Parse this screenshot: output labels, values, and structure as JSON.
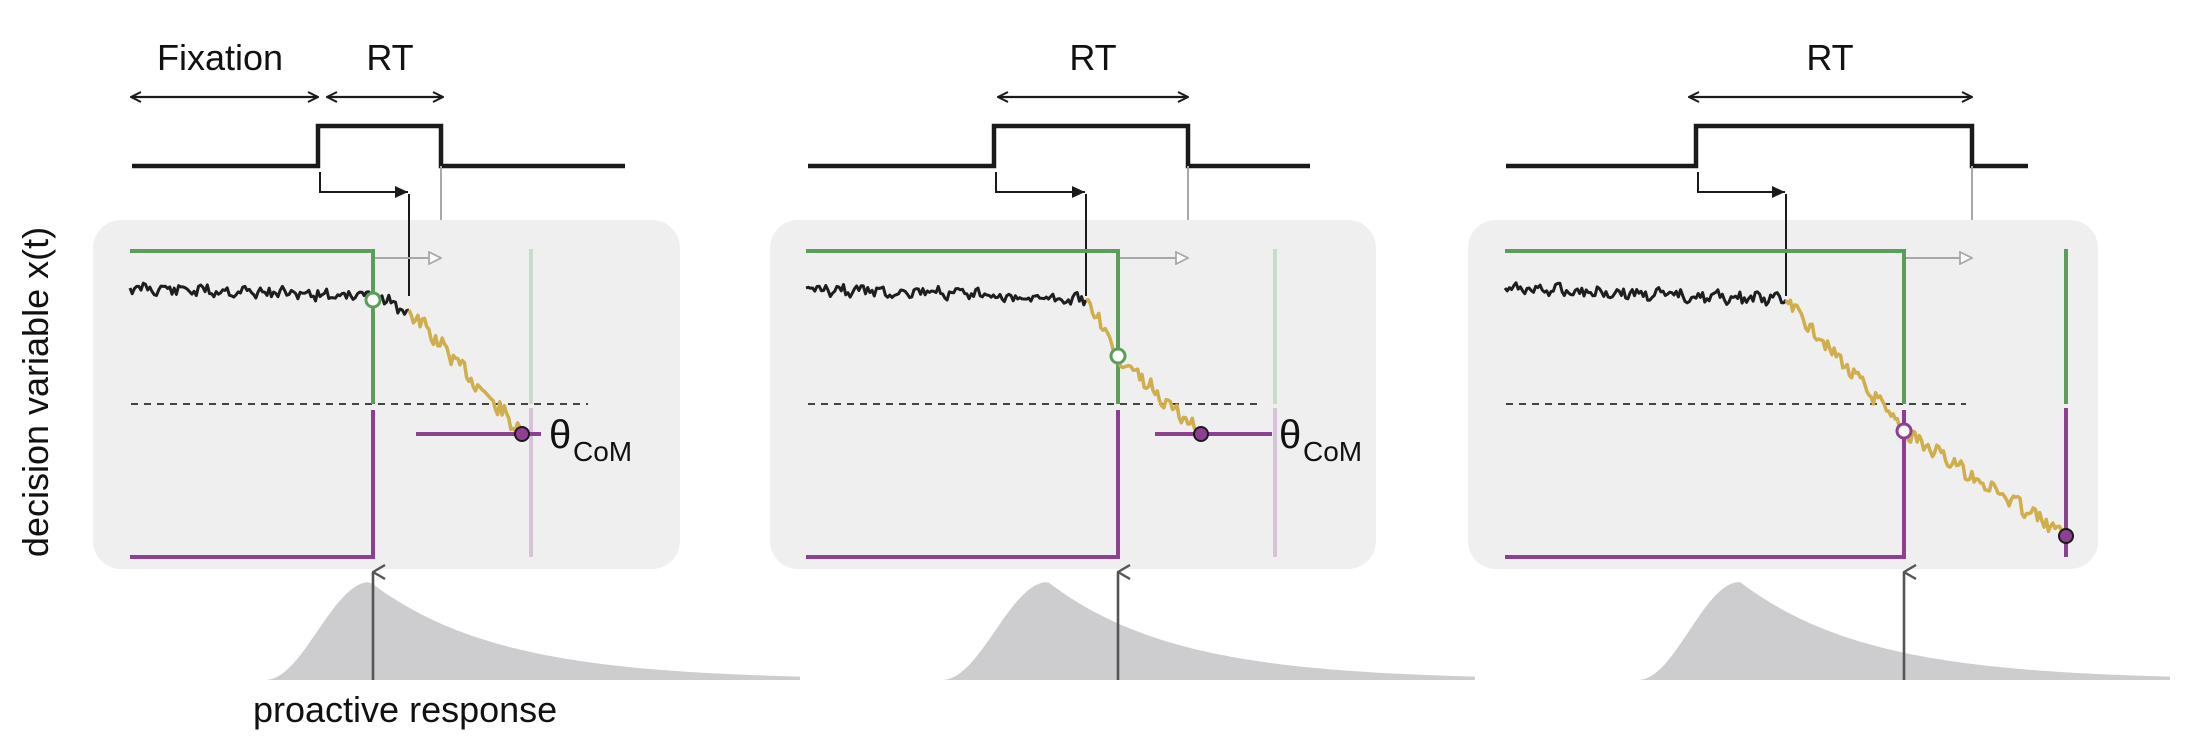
{
  "figure": {
    "y_axis_label": "decision variable x(t)",
    "annotation_proactive": "proactive response",
    "theta_symbol": "θ",
    "theta_subscript": "CoM",
    "colors": {
      "upper_bound": "#5a9e5a",
      "lower_bound": "#8e3f94",
      "trace_pre": "#1e1e1e",
      "trace_post": "#cfae4b",
      "panel_bg": "#efefef",
      "distribution": "#cdcdcf",
      "timing_line": "#1a1a1a",
      "delay_arrow_gray": "#a8a8a8",
      "threshold_dash": "#444444"
    },
    "panels": [
      {
        "id": "panel-1",
        "labels": {
          "fixation": "Fixation",
          "rt": "RT"
        },
        "has_fixation_label": true,
        "has_theta_label": true,
        "crossing_marker": "open-green",
        "com_marker": "filled-purple"
      },
      {
        "id": "panel-2",
        "labels": {
          "rt": "RT"
        },
        "has_fixation_label": false,
        "has_theta_label": true,
        "crossing_marker": "open-green",
        "com_marker": "filled-purple"
      },
      {
        "id": "panel-3",
        "labels": {
          "rt": "RT"
        },
        "has_fixation_label": false,
        "has_theta_label": false,
        "crossing_marker": "open-purple",
        "com_marker": "filled-purple"
      }
    ]
  }
}
